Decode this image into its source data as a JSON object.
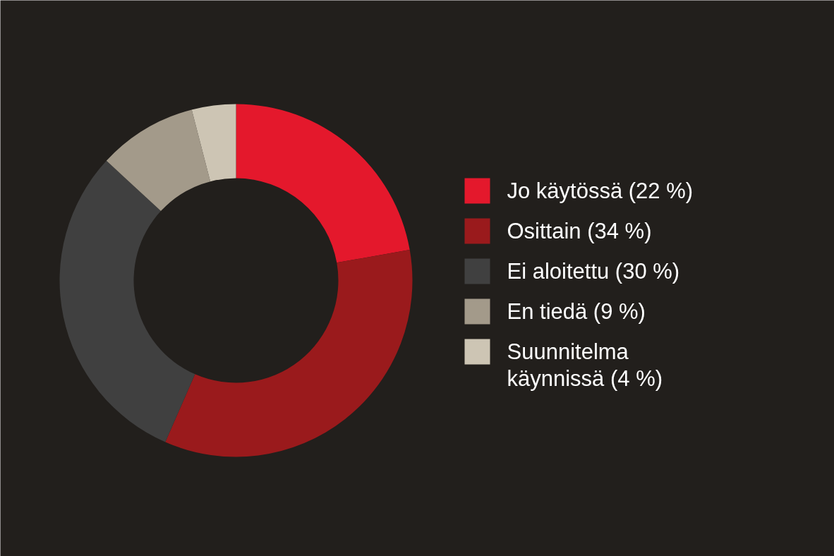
{
  "chart_data": {
    "type": "donut",
    "categories": [
      "Jo käytössä (22 %)",
      "Osittain (34 %)",
      "Ei aloitettu (30 %)",
      "En tiedä (9 %)",
      "Suunnitelma käynnissä (4 %)"
    ],
    "values": [
      22,
      34,
      30,
      9,
      4
    ],
    "colors": [
      "#e4182c",
      "#9a1a1c",
      "#404040",
      "#a39a8a",
      "#cdc5b4"
    ],
    "legend": "right"
  }
}
